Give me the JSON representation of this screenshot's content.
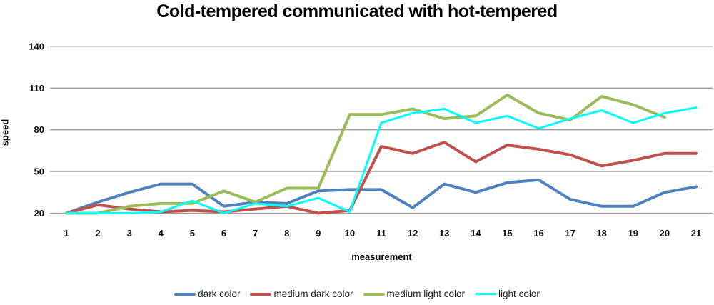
{
  "title": "Cold-tempered communicated with hot-tempered",
  "chart_data": {
    "type": "line",
    "title": "Cold-tempered communicated with hot-tempered",
    "xlabel": "measurement",
    "ylabel": "speed",
    "x": [
      1,
      2,
      3,
      4,
      5,
      6,
      7,
      8,
      9,
      10,
      11,
      12,
      13,
      14,
      15,
      16,
      17,
      18,
      19,
      20,
      21
    ],
    "yticks": [
      20,
      50,
      80,
      110,
      140
    ],
    "ylim": [
      20,
      140
    ],
    "grid": "horizontal",
    "gridline_color": "#9d9d9d",
    "legend_position": "bottom",
    "series": [
      {
        "name": "dark color",
        "color": "#4F81BD",
        "stroke_width": 4,
        "values": [
          20,
          28,
          35,
          41,
          41,
          25,
          28,
          27,
          36,
          37,
          37,
          24,
          41,
          35,
          42,
          44,
          30,
          25,
          25,
          35,
          39
        ]
      },
      {
        "name": "medium dark color",
        "color": "#C0504D",
        "stroke_width": 4,
        "values": [
          20,
          26,
          23,
          21,
          22,
          21,
          23,
          25,
          20,
          22,
          68,
          63,
          71,
          57,
          69,
          66,
          62,
          54,
          58,
          63,
          63
        ]
      },
      {
        "name": "medium light color",
        "color": "#9BBB59",
        "stroke_width": 4,
        "values": [
          20,
          20,
          25,
          27,
          27,
          36,
          28,
          38,
          38,
          91,
          91,
          95,
          88,
          90,
          105,
          92,
          87,
          104,
          98,
          89,
          null
        ]
      },
      {
        "name": "light color",
        "color": "#00FFFF",
        "stroke_width": 3,
        "values": [
          20,
          20,
          20,
          21,
          29,
          20,
          27,
          25,
          31,
          21,
          85,
          92,
          95,
          85,
          90,
          81,
          88,
          94,
          85,
          92,
          96
        ]
      }
    ]
  }
}
